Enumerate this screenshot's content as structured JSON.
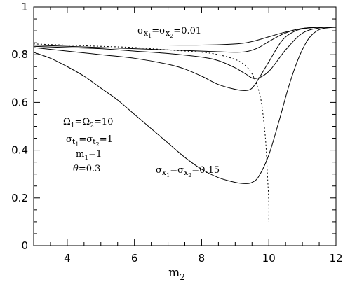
{
  "chart_data": {
    "type": "line",
    "title": "",
    "xlabel": "m",
    "xlabel_sub": "2",
    "ylabel": "",
    "xlim": [
      3,
      12
    ],
    "ylim": [
      0,
      1
    ],
    "xticks": [
      4,
      6,
      8,
      10,
      12
    ],
    "yticks": [
      0,
      0.2,
      0.4,
      0.6,
      0.8,
      1
    ],
    "xtick_labels": [
      "4",
      "6",
      "8",
      "10",
      "12"
    ],
    "ytick_labels": [
      "0",
      "0.2",
      "0.4",
      "0.6",
      "0.8",
      "1"
    ],
    "grid": false,
    "legend": "none",
    "series": [
      {
        "style": "solid",
        "x": [
          3,
          4,
          5,
          6,
          7,
          8,
          9,
          9.5,
          10,
          10.5,
          11,
          11.5,
          12
        ],
        "y": [
          0.84,
          0.84,
          0.84,
          0.84,
          0.84,
          0.84,
          0.845,
          0.855,
          0.875,
          0.895,
          0.91,
          0.915,
          0.915
        ]
      },
      {
        "style": "solid",
        "x": [
          3,
          4,
          5,
          6,
          7,
          8,
          9,
          9.4,
          9.7,
          10,
          10.4,
          10.8,
          11.2,
          11.6,
          12
        ],
        "y": [
          0.84,
          0.835,
          0.83,
          0.825,
          0.82,
          0.815,
          0.81,
          0.815,
          0.83,
          0.855,
          0.885,
          0.905,
          0.913,
          0.915,
          0.915
        ]
      },
      {
        "style": "solid",
        "x": [
          3,
          4,
          5,
          6,
          7,
          8,
          8.5,
          9,
          9.3,
          9.6,
          10,
          10.5,
          11,
          11.5,
          12
        ],
        "y": [
          0.835,
          0.83,
          0.825,
          0.815,
          0.805,
          0.79,
          0.775,
          0.745,
          0.72,
          0.7,
          0.73,
          0.82,
          0.89,
          0.912,
          0.915
        ]
      },
      {
        "style": "solid",
        "x": [
          3,
          4,
          5,
          6,
          7,
          7.5,
          8,
          8.5,
          9,
          9.3,
          9.5,
          9.7,
          10,
          10.4,
          10.8,
          11.2,
          11.6,
          12
        ],
        "y": [
          0.83,
          0.815,
          0.8,
          0.785,
          0.76,
          0.74,
          0.71,
          0.675,
          0.655,
          0.65,
          0.66,
          0.7,
          0.77,
          0.86,
          0.9,
          0.912,
          0.915,
          0.915
        ]
      },
      {
        "style": "solid",
        "x": [
          3,
          3.5,
          4,
          4.5,
          5,
          5.5,
          6,
          6.5,
          7,
          7.5,
          8,
          8.5,
          9,
          9.3,
          9.5,
          9.7,
          10,
          10.3,
          10.6,
          10.9,
          11.2,
          11.5,
          11.8,
          12
        ],
        "y": [
          0.81,
          0.785,
          0.75,
          0.71,
          0.66,
          0.61,
          0.55,
          0.49,
          0.43,
          0.37,
          0.32,
          0.285,
          0.265,
          0.26,
          0.265,
          0.29,
          0.38,
          0.52,
          0.67,
          0.79,
          0.87,
          0.905,
          0.913,
          0.915
        ]
      },
      {
        "style": "dotted",
        "x": [
          3,
          4,
          5,
          6,
          7,
          8,
          8.5,
          9,
          9.3,
          9.5,
          9.7,
          9.8,
          9.9,
          9.95,
          10,
          10
        ],
        "y": [
          0.845,
          0.84,
          0.835,
          0.83,
          0.82,
          0.81,
          0.8,
          0.78,
          0.755,
          0.72,
          0.65,
          0.58,
          0.45,
          0.32,
          0.18,
          0.1
        ]
      }
    ],
    "annotations": [
      {
        "text": "σx1=σx2=0.01",
        "at": [
          7.5,
          0.9
        ]
      },
      {
        "text": "σx1=σx2=0.15",
        "at": [
          10.1,
          0.29
        ]
      },
      {
        "text": "Ω1=Ω2=10",
        "at": [
          3.7,
          0.52
        ]
      },
      {
        "text": "σt1=σt2=1",
        "at": [
          3.7,
          0.44
        ]
      },
      {
        "text": "m1=1",
        "at": [
          3.7,
          0.38
        ]
      },
      {
        "text": "θ=0.3",
        "at": [
          3.7,
          0.32
        ]
      }
    ]
  },
  "labels": {
    "sigma_top": {
      "sym": "σ",
      "v1": "x",
      "s1": "1",
      "eq1": "=",
      "sym2": "σ",
      "v2": "x",
      "s2": "2",
      "eq2": "=",
      "val": "0.01"
    },
    "sigma_bottom": {
      "sym": "σ",
      "v1": "x",
      "s1": "1",
      "eq1": "=",
      "sym2": "σ",
      "v2": "x",
      "s2": "2",
      "eq2": "=",
      "val": "0.15"
    },
    "omega": {
      "sym": "Ω",
      "s1": "1",
      "eq1": "=",
      "sym2": "Ω",
      "s2": "2",
      "eq2": "=",
      "val": "10"
    },
    "sigma_t": {
      "sym": "σ",
      "v1": "t",
      "s1": "1",
      "eq1": "=",
      "sym2": "σ",
      "v2": "t",
      "s2": "2",
      "eq2": "=",
      "val": "1"
    },
    "mass": {
      "sym": "m",
      "s1": "1",
      "eq": "=",
      "val": "1"
    },
    "theta": {
      "sym": "θ",
      "eq": "=",
      "val": "0.3"
    }
  }
}
